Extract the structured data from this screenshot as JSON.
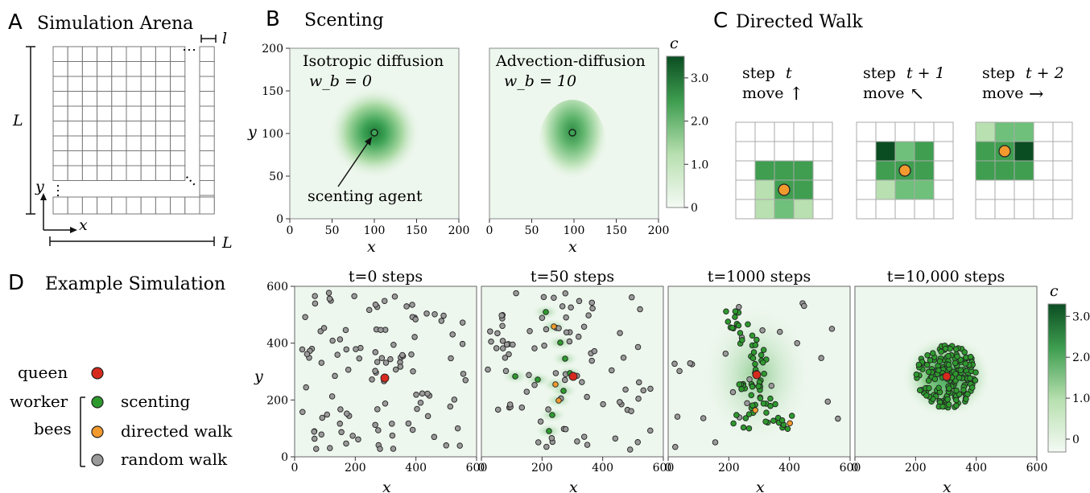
{
  "colors": {
    "scent_light": "#eef7ee",
    "scent_dark": "#0b4d22",
    "queen": "#d62a1e",
    "scenting": "#2e9a2e",
    "directed": "#f29a2e",
    "random": "#9a9a9a"
  },
  "panel_a": {
    "letter": "A",
    "title": "Simulation Arena",
    "label_l": "l",
    "label_L_vertical": "L",
    "label_L_horizontal": "L",
    "label_x": "x",
    "label_y": "y",
    "ellipsis": "⋯"
  },
  "panel_b": {
    "letter": "B",
    "title": "Scenting",
    "left_title": "Isotropic diffusion",
    "left_param": "w_b = 0",
    "right_title": "Advection-diffusion",
    "right_param": "w_b = 10",
    "annotation": "scenting agent",
    "xlabel": "x",
    "ylabel": "y",
    "xticks": [
      "0",
      "50",
      "100",
      "150",
      "200"
    ],
    "yticks": [
      "0",
      "50",
      "100",
      "150",
      "200"
    ],
    "colorbar_label": "c",
    "colorbar_ticks": [
      "3.0",
      "2.0",
      "1.0",
      "0"
    ]
  },
  "panel_c": {
    "letter": "C",
    "title": "Directed Walk",
    "steps": [
      {
        "label": "step",
        "var": "t",
        "move": "move",
        "arrow": "↑"
      },
      {
        "label": "step",
        "var": "t + 1",
        "move": "move",
        "arrow": "↖"
      },
      {
        "label": "step",
        "var": "t + 2",
        "move": "move",
        "arrow": "→"
      }
    ]
  },
  "panel_d": {
    "letter": "D",
    "title": "Example Simulation",
    "xlabel": "x",
    "ylabel": "y",
    "xticks": [
      "0",
      "200",
      "400",
      "600"
    ],
    "yticks": [
      "0",
      "200",
      "400",
      "600"
    ],
    "snapshots": [
      {
        "title": "t=0 steps"
      },
      {
        "title": "t=50 steps"
      },
      {
        "title": "t=1000 steps"
      },
      {
        "title": "t=10,000 steps"
      }
    ],
    "colorbar_label": "c",
    "colorbar_ticks": [
      "3.0",
      "2.0",
      "1.0",
      "0"
    ],
    "legend": {
      "queen": "queen",
      "worker_line1": "worker",
      "worker_line2": "bees",
      "scenting": "scenting",
      "directed": "directed walk",
      "random": "random walk"
    }
  }
}
